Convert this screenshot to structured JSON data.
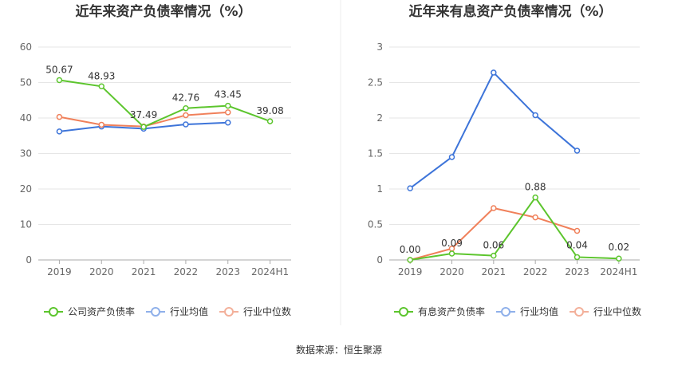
{
  "colors": {
    "company": "#5cc52d",
    "avg": "#3d74d9",
    "median": "#f0805a",
    "legend_avg": "#8fb0ea",
    "legend_median": "#f3b09a",
    "grid": "#e6e6e6",
    "axis": "#aaaaaa"
  },
  "source": "数据来源：恒生聚源",
  "chart_data": [
    {
      "type": "line",
      "title": "近年来资产负债率情况（%）",
      "categories": [
        "2019",
        "2020",
        "2021",
        "2022",
        "2023",
        "2024H1"
      ],
      "ylim": [
        0,
        60
      ],
      "yticks": [
        "0",
        "10",
        "20",
        "30",
        "40",
        "50",
        "60"
      ],
      "grid": true,
      "legend_position": "bottom",
      "series": [
        {
          "name": "公司资产负债率",
          "role": "company",
          "values": [
            50.67,
            48.93,
            37.49,
            42.76,
            43.45,
            39.08
          ],
          "labels": [
            "50.67",
            "48.93",
            "37.49",
            "42.76",
            "43.45",
            "39.08"
          ]
        },
        {
          "name": "行业均值",
          "role": "avg",
          "values": [
            36.2,
            37.6,
            37.0,
            38.2,
            38.7,
            null
          ]
        },
        {
          "name": "行业中位数",
          "role": "median",
          "values": [
            40.3,
            38.1,
            37.6,
            40.8,
            41.6,
            null
          ]
        }
      ]
    },
    {
      "type": "line",
      "title": "近年来有息资产负债率情况（%）",
      "categories": [
        "2019",
        "2020",
        "2021",
        "2022",
        "2023",
        "2024H1"
      ],
      "ylim": [
        0,
        3
      ],
      "yticks": [
        "0",
        "0.5",
        "1",
        "1.5",
        "2",
        "2.5",
        "3"
      ],
      "grid": true,
      "legend_position": "bottom",
      "series": [
        {
          "name": "有息资产负债率",
          "role": "company",
          "values": [
            0.0,
            0.09,
            0.06,
            0.88,
            0.04,
            0.02
          ],
          "labels": [
            "0.00",
            "0.09",
            "0.06",
            "0.88",
            "0.04",
            "0.02"
          ]
        },
        {
          "name": "行业均值",
          "role": "avg",
          "values": [
            1.01,
            1.45,
            2.64,
            2.04,
            1.54,
            null
          ]
        },
        {
          "name": "行业中位数",
          "role": "median",
          "values": [
            0.0,
            0.16,
            0.73,
            0.6,
            0.41,
            null
          ]
        }
      ]
    }
  ]
}
